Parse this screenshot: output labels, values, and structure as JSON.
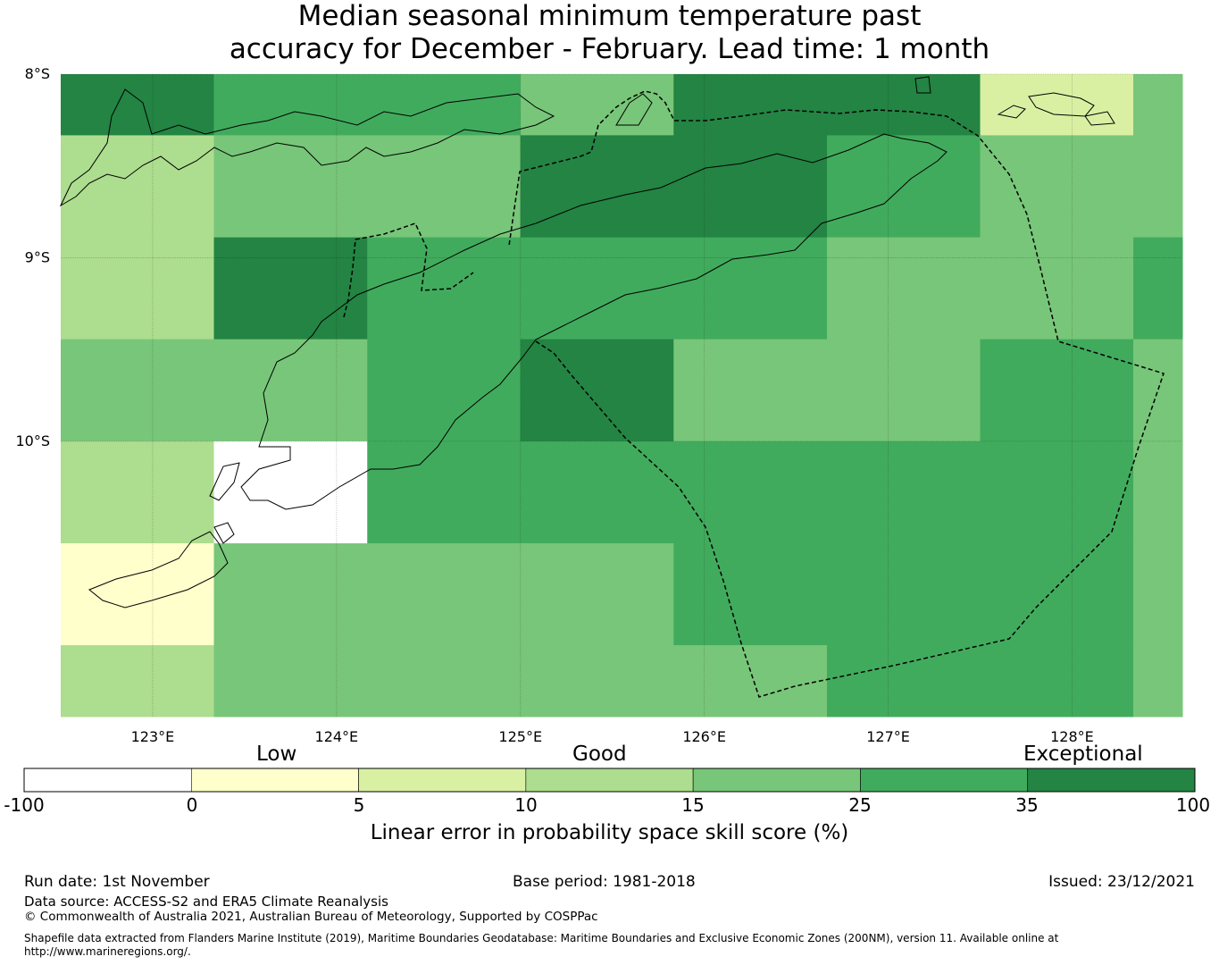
{
  "title": {
    "line1": "Median seasonal minimum temperature past",
    "line2": "accuracy for December - February. Lead time: 1 month"
  },
  "map": {
    "lat_labels": [
      "8°S",
      "9°S",
      "10°S"
    ],
    "lon_labels": [
      "123°E",
      "124°E",
      "125°E",
      "126°E",
      "127°E",
      "128°E"
    ],
    "lon_range": [
      122.5,
      128.6
    ],
    "lat_range": [
      -8.0,
      -11.5
    ],
    "grid_lon": [
      122.5,
      123.333,
      124.167,
      125.0,
      125.833,
      126.667,
      127.5,
      128.333,
      128.6
    ],
    "grid_lat": [
      -8.0,
      -8.333,
      -8.889,
      -9.444,
      -10.0,
      -10.556,
      -11.111,
      -11.5
    ],
    "skill_categories_grid": [
      [
        6,
        5,
        5,
        4,
        6,
        6,
        2,
        4
      ],
      [
        3,
        4,
        4,
        6,
        6,
        5,
        4,
        4
      ],
      [
        3,
        6,
        5,
        5,
        5,
        4,
        4,
        5
      ],
      [
        4,
        4,
        5,
        6,
        4,
        4,
        5,
        4
      ],
      [
        3,
        0,
        5,
        5,
        5,
        5,
        5,
        4
      ],
      [
        1,
        4,
        4,
        4,
        5,
        5,
        5,
        4
      ],
      [
        3,
        4,
        4,
        4,
        4,
        5,
        5,
        4
      ]
    ]
  },
  "colorbar": {
    "categories": [
      "Low",
      "Good",
      "Exceptional"
    ],
    "ticks": [
      "-100",
      "0",
      "5",
      "10",
      "15",
      "25",
      "35",
      "100"
    ],
    "colors": [
      "#ffffff",
      "#ffffcc",
      "#d9f0a3",
      "#addd8e",
      "#78c679",
      "#41ab5d",
      "#238443"
    ],
    "label": "Linear error in probability space skill score (%)"
  },
  "footer": {
    "run_date": "Run date: 1st November",
    "base_period": "Base period: 1981-2018",
    "issued": "Issued: 23/12/2021",
    "data_source": "Data source: ACCESS-S2 and ERA5 Climate Reanalysis",
    "copyright": "© Commonwealth of Australia 2021, Australian Bureau of Meteorology, Supported by COSPPac",
    "shapefile_line1": "Shapefile data extracted from Flanders Marine Institute (2019), Maritime Boundaries Geodatabase: Maritime Boundaries and Exclusive Economic Zones (200NM), version 11. Available online at",
    "shapefile_line2": "http://www.marineregions.org/."
  }
}
